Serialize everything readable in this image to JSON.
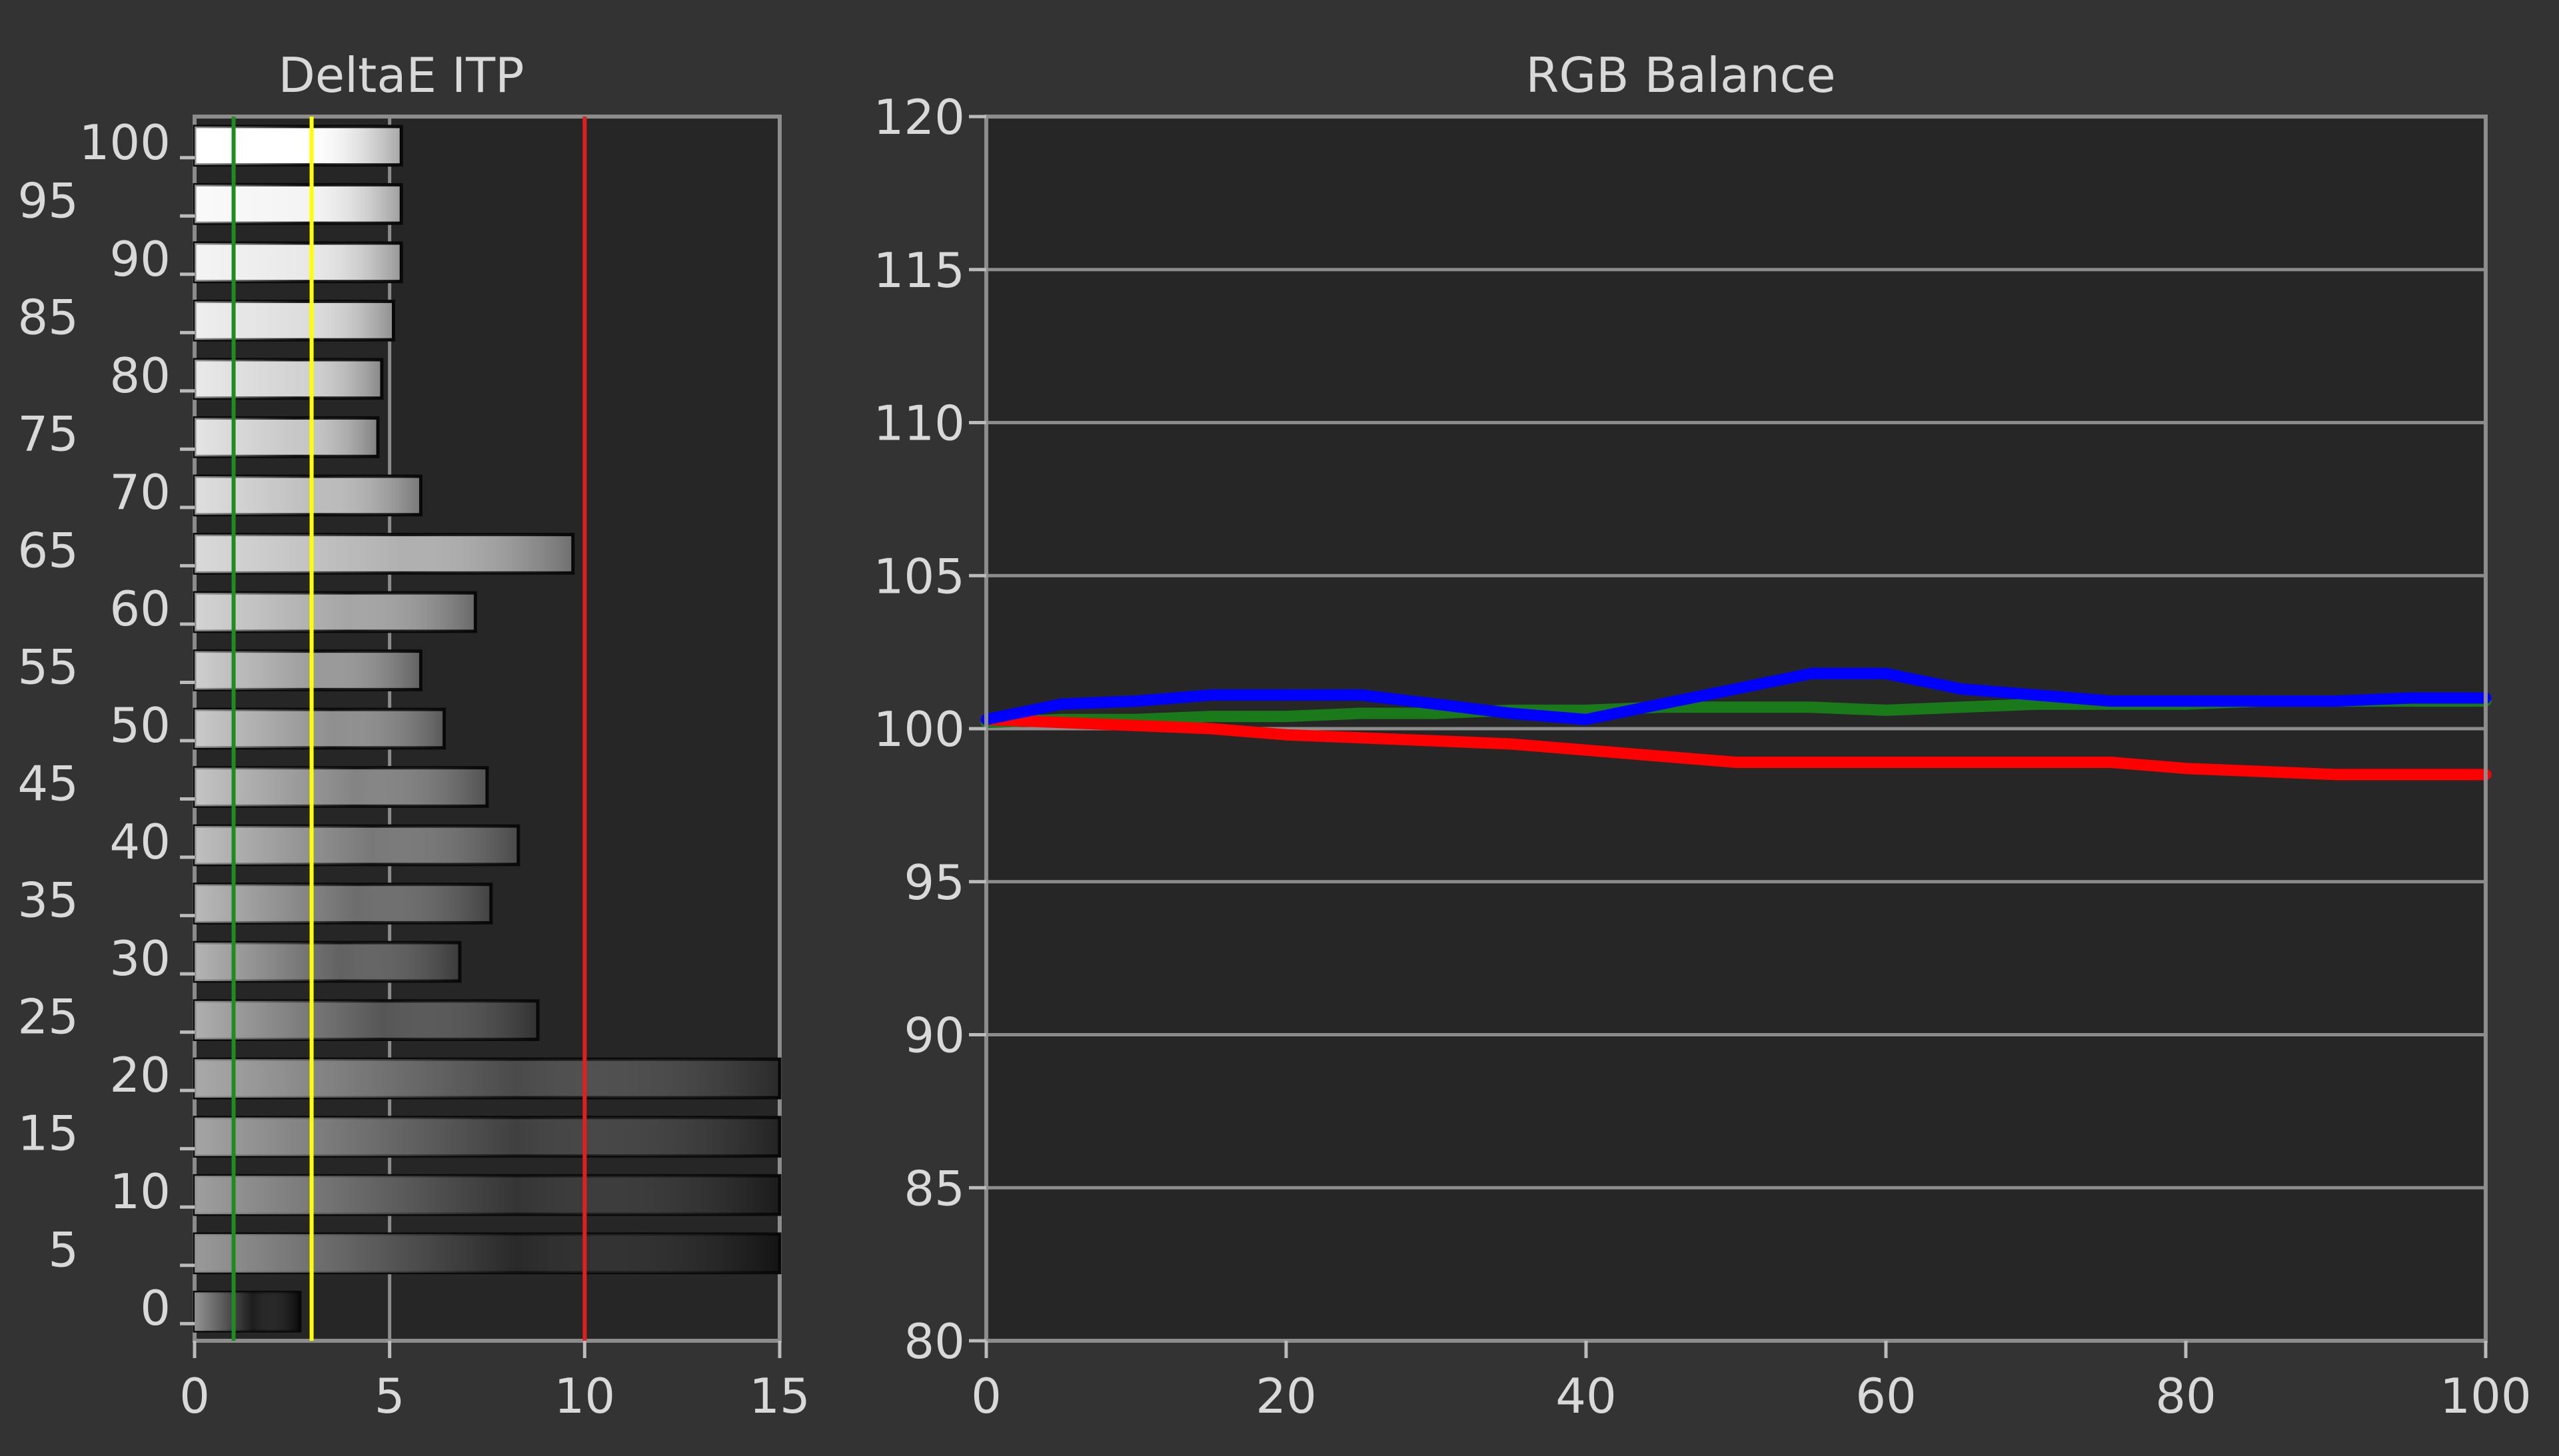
{
  "chart_data": [
    {
      "type": "bar",
      "orientation": "horizontal",
      "title": "DeltaE ITP",
      "xlabel": "",
      "ylabel": "",
      "xlim": [
        0,
        15
      ],
      "xticks": [
        "0",
        "5",
        "10",
        "15"
      ],
      "categories": [
        "100",
        "95",
        "90",
        "85",
        "80",
        "75",
        "70",
        "65",
        "60",
        "55",
        "50",
        "45",
        "40",
        "35",
        "30",
        "25",
        "20",
        "15",
        "10",
        "5",
        "0"
      ],
      "ytick_labels": [
        "100",
        "95",
        "90",
        "85",
        "80",
        "75",
        "70",
        "65",
        "60",
        "55",
        "50",
        "45",
        "40",
        "35",
        "30",
        "25",
        "20",
        "15",
        "10",
        "5",
        "0"
      ],
      "values": [
        5.3,
        5.3,
        5.3,
        5.1,
        4.8,
        4.7,
        5.8,
        9.7,
        7.2,
        5.8,
        6.4,
        7.5,
        8.3,
        7.6,
        6.8,
        8.8,
        15,
        15,
        15,
        15,
        2.7
      ],
      "reference_lines": [
        {
          "value": 1,
          "color": "#1e8c1e"
        },
        {
          "value": 3,
          "color": "#ffff00"
        },
        {
          "value": 10,
          "color": "#e02020"
        }
      ],
      "grid": true
    },
    {
      "type": "line",
      "title": "RGB Balance",
      "xlabel": "",
      "ylabel": "",
      "xlim": [
        0,
        100
      ],
      "ylim": [
        80,
        120
      ],
      "xticks": [
        "0",
        "20",
        "40",
        "60",
        "80",
        "100"
      ],
      "yticks": [
        "120",
        "115",
        "110",
        "105",
        "100",
        "95",
        "90",
        "85",
        "80"
      ],
      "x": [
        0,
        5,
        10,
        15,
        20,
        25,
        30,
        35,
        40,
        45,
        50,
        55,
        60,
        65,
        70,
        75,
        80,
        85,
        90,
        95,
        100
      ],
      "series": [
        {
          "color": "#1a7a1a",
          "values": [
            100.2,
            100.3,
            100.3,
            100.4,
            100.4,
            100.5,
            100.5,
            100.6,
            100.6,
            100.7,
            100.7,
            100.7,
            100.6,
            100.7,
            100.8,
            100.8,
            100.8,
            100.9,
            100.9,
            100.9,
            100.9
          ]
        },
        {
          "color": "#ff0000",
          "values": [
            100.3,
            100.2,
            100.1,
            100.0,
            99.8,
            99.7,
            99.6,
            99.5,
            99.3,
            99.1,
            98.9,
            98.9,
            98.9,
            98.9,
            98.9,
            98.9,
            98.7,
            98.6,
            98.5,
            98.5,
            98.5
          ]
        },
        {
          "color": "#0000ff",
          "values": [
            100.3,
            100.8,
            100.9,
            101.1,
            101.1,
            101.1,
            100.8,
            100.5,
            100.3,
            100.8,
            101.3,
            101.8,
            101.8,
            101.3,
            101.1,
            100.9,
            100.9,
            100.9,
            100.9,
            101.0,
            101.0
          ]
        }
      ],
      "grid": true
    }
  ]
}
